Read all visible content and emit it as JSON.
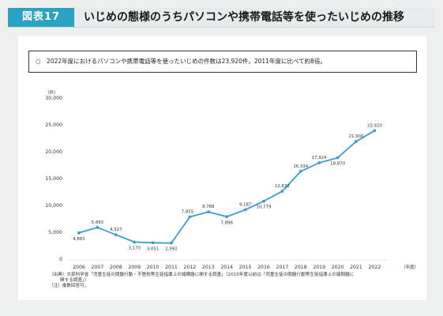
{
  "header": {
    "figure_label": "図表17",
    "title": "いじめの態様のうちパソコンや携帯電話等を使ったいじめの推移"
  },
  "summary": {
    "text": "○　2022年度におけるパソコンや携帯電話等を使ったいじめの件数は23,920件。2011年度に比べて約8倍。"
  },
  "footnotes": {
    "line1": "（出典）文部科学省「児童生徒の問題行動・不登校等生徒指導上の諸課題に関する調査」（2015年度以前は「児童生徒の問題行動等生徒指導上の諸問題に",
    "line2": "関する調査」）",
    "line3": "（注）複数回答可。"
  },
  "colors": {
    "accent": "#2aa3c2",
    "line": "#3a9fd0"
  },
  "chart_data": {
    "type": "line",
    "ylabel": "（件）",
    "xlabel": "（年度）",
    "ylim": [
      0,
      30000
    ],
    "yticks": [
      0,
      5000,
      10000,
      15000,
      20000,
      25000,
      30000
    ],
    "ytick_labels": [
      "0",
      "5,000",
      "10,000",
      "15,000",
      "20,000",
      "25,000",
      "30,000"
    ],
    "categories": [
      "2006",
      "2007",
      "2008",
      "2009",
      "2010",
      "2011",
      "2012",
      "2013",
      "2014",
      "2015",
      "2016",
      "2017",
      "2018",
      "2019",
      "2020",
      "2021",
      "2022"
    ],
    "values": [
      4883,
      5893,
      4527,
      3170,
      3051,
      2992,
      7855,
      8788,
      7898,
      9187,
      10779,
      12632,
      16334,
      17924,
      18870,
      21900,
      23920
    ],
    "value_labels": [
      "4,883",
      "5,893",
      "4,527",
      "3,170",
      "3,051",
      "2,992",
      "7,855",
      "8,788",
      "7,898",
      "9,187",
      "10,779",
      "12,632",
      "16,334",
      "17,924",
      "18,870",
      "21,900",
      "23,920"
    ],
    "grid": false,
    "legend": "none"
  }
}
